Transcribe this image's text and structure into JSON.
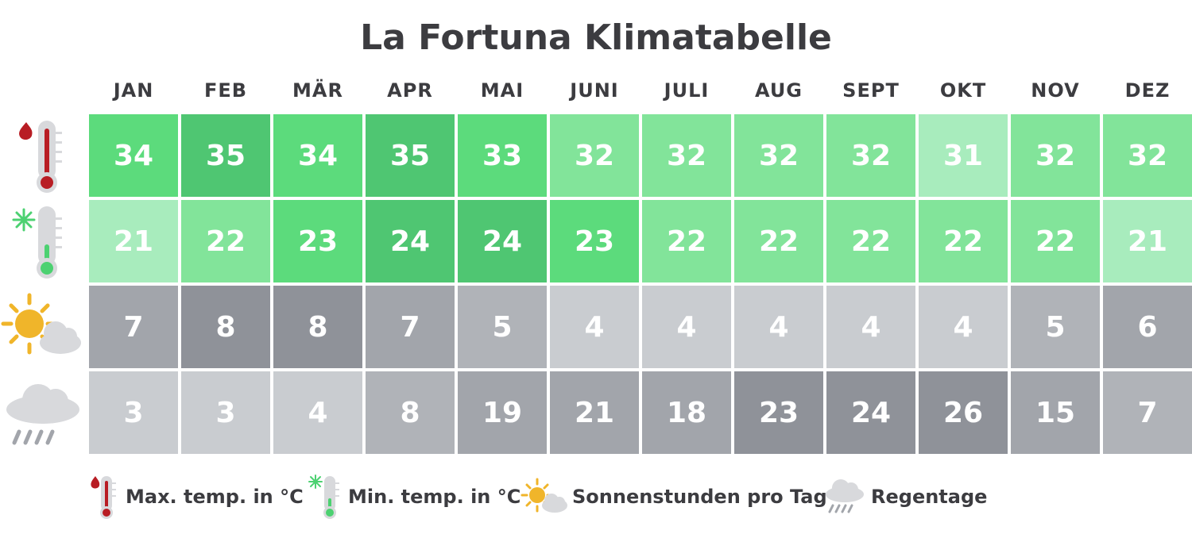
{
  "chart_data": {
    "type": "table",
    "title": "La Fortuna Klimatabelle",
    "columns": [
      "JAN",
      "FEB",
      "MÄR",
      "APR",
      "MAI",
      "JUNI",
      "JULI",
      "AUG",
      "SEPT",
      "OKT",
      "NOV",
      "DEZ"
    ],
    "rows": [
      {
        "key": "max",
        "icon": "thermometer-hot-icon",
        "values": [
          34,
          35,
          34,
          35,
          33,
          32,
          32,
          32,
          32,
          31,
          32,
          32
        ]
      },
      {
        "key": "min",
        "icon": "thermometer-cold-icon",
        "values": [
          21,
          22,
          23,
          24,
          24,
          23,
          22,
          22,
          22,
          22,
          22,
          21
        ]
      },
      {
        "key": "sun",
        "icon": "sun-cloud-icon",
        "values": [
          7,
          8,
          8,
          7,
          5,
          4,
          4,
          4,
          4,
          4,
          5,
          6
        ]
      },
      {
        "key": "rain",
        "icon": "rain-cloud-icon",
        "values": [
          3,
          3,
          4,
          8,
          19,
          21,
          18,
          23,
          24,
          26,
          15,
          7
        ]
      }
    ]
  },
  "legend": [
    {
      "icon": "thermometer-hot-icon",
      "label": "Max. temp. in °C"
    },
    {
      "icon": "thermometer-cold-icon",
      "label": "Min. temp. in °C"
    },
    {
      "icon": "sun-cloud-icon",
      "label": "Sonnenstunden pro Tag"
    },
    {
      "icon": "rain-cloud-icon",
      "label": "Regentage"
    }
  ],
  "colors": {
    "title": "#3c3c40",
    "green_light": "#a8ecbd",
    "green_mid": "#82e49a",
    "green": "#5cdb7c",
    "green_dark": "#4fc672",
    "gray_light": "#c9ccd0",
    "gray_mid": "#b0b3b8",
    "gray": "#a2a5ab",
    "gray_dark": "#8f9299",
    "thermo_red": "#b81d24",
    "thermo_green": "#4cd171",
    "sun": "#f0b52a",
    "cloud": "#d8d9dc"
  }
}
